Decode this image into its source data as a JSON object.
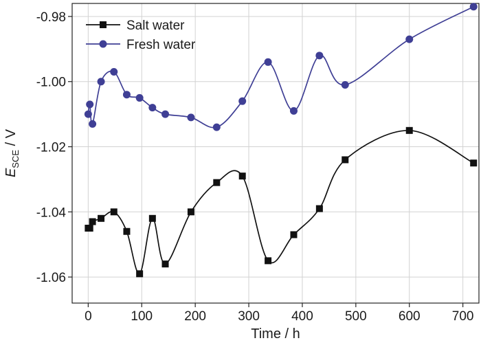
{
  "chart_data": {
    "type": "line",
    "title": "",
    "xlabel": "Time / h",
    "ylabel_main": "E",
    "ylabel_sub": "SCE",
    "ylabel_unit": " / V",
    "xlim": [
      -30,
      730
    ],
    "ylim": [
      -1.068,
      -0.976
    ],
    "xticks": [
      0,
      100,
      200,
      300,
      400,
      500,
      600,
      700
    ],
    "xtick_labels": [
      "0",
      "100",
      "200",
      "300",
      "400",
      "500",
      "600",
      "700"
    ],
    "yticks": [
      -1.06,
      -1.04,
      -1.02,
      -1.0,
      -0.98
    ],
    "ytick_labels": [
      "-1.06",
      "-1.04",
      "-1.02",
      "-1.00",
      "-0.98"
    ],
    "grid": true,
    "legend_position": "top-left",
    "series": [
      {
        "name": "Salt water",
        "marker": "square",
        "color": "#111111",
        "x": [
          0,
          3,
          8,
          24,
          48,
          72,
          96,
          120,
          144,
          192,
          240,
          288,
          336,
          384,
          432,
          480,
          600,
          720
        ],
        "y": [
          -1.045,
          -1.045,
          -1.043,
          -1.042,
          -1.04,
          -1.046,
          -1.059,
          -1.042,
          -1.056,
          -1.04,
          -1.031,
          -1.029,
          -1.055,
          -1.047,
          -1.039,
          -1.024,
          -1.015,
          -1.025
        ]
      },
      {
        "name": "Fresh water",
        "marker": "circle",
        "color": "#3f3f95",
        "x": [
          0,
          3,
          8,
          24,
          48,
          72,
          96,
          120,
          144,
          192,
          240,
          288,
          336,
          384,
          432,
          480,
          600,
          720
        ],
        "y": [
          -1.01,
          -1.007,
          -1.013,
          -1.0,
          -0.997,
          -1.004,
          -1.005,
          -1.008,
          -1.01,
          -1.011,
          -1.014,
          -1.006,
          -0.994,
          -1.009,
          -0.992,
          -1.001,
          -0.987,
          -0.977
        ]
      }
    ]
  }
}
